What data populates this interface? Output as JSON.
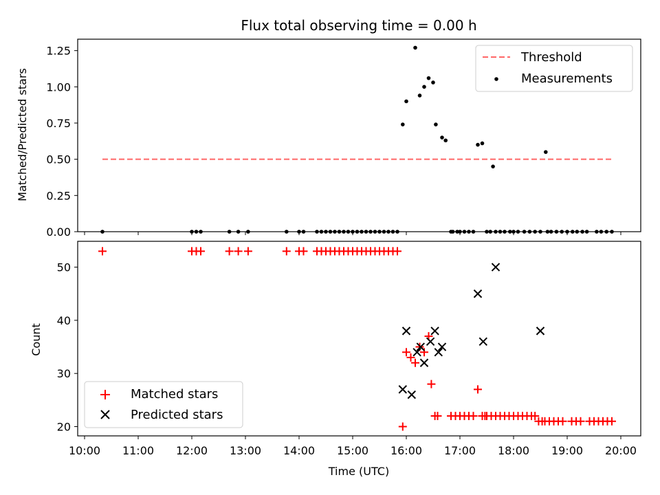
{
  "chart_data": [
    {
      "type": "scatter",
      "title": "Flux total observing time = 0.00 h",
      "xlabel": "",
      "ylabel": "Matched/Predicted stars",
      "xlim": [
        "10:00",
        "20:10"
      ],
      "ylim": [
        0,
        1.33
      ],
      "yticks": [
        0.0,
        0.25,
        0.5,
        0.75,
        1.0,
        1.25
      ],
      "ytick_labels": [
        "0.00",
        "0.25",
        "0.50",
        "0.75",
        "1.00",
        "1.25"
      ],
      "legend_position": "top-right",
      "colors": {
        "threshold": "#ff6666",
        "measurements": "#000000"
      },
      "series": [
        {
          "name": "Threshold",
          "style": "dashed-line",
          "x": [
            "10:20",
            "19:50"
          ],
          "y": [
            0.5,
            0.5
          ]
        },
        {
          "name": "Measurements",
          "style": "dot",
          "x": [
            "10:20",
            "12:00",
            "12:05",
            "12:10",
            "12:42",
            "12:52",
            "13:03",
            "13:46",
            "14:00",
            "14:05",
            "14:20",
            "14:25",
            "14:30",
            "14:35",
            "14:40",
            "14:45",
            "14:50",
            "14:55",
            "15:00",
            "15:05",
            "15:10",
            "15:15",
            "15:20",
            "15:25",
            "15:30",
            "15:35",
            "15:40",
            "15:45",
            "15:50",
            "15:56",
            "16:00",
            "16:10",
            "16:15",
            "16:20",
            "16:25",
            "16:30",
            "16:33",
            "16:40",
            "16:44",
            "16:50",
            "16:52",
            "16:57",
            "17:00",
            "17:05",
            "17:10",
            "17:15",
            "17:20",
            "17:25",
            "17:30",
            "17:34",
            "17:37",
            "17:40",
            "17:45",
            "17:50",
            "17:56",
            "18:00",
            "18:05",
            "18:12",
            "18:18",
            "18:24",
            "18:30",
            "18:36",
            "18:38",
            "18:42",
            "18:48",
            "18:54",
            "19:00",
            "19:06",
            "19:11",
            "19:17",
            "19:22",
            "19:33",
            "19:38",
            "19:44",
            "19:50"
          ],
          "y": [
            0.0,
            0.0,
            0.0,
            0.0,
            0.0,
            0.0,
            0.0,
            0.0,
            0.0,
            0.0,
            0.0,
            0.0,
            0.0,
            0.0,
            0.0,
            0.0,
            0.0,
            0.0,
            0.0,
            0.0,
            0.0,
            0.0,
            0.0,
            0.0,
            0.0,
            0.0,
            0.0,
            0.0,
            0.0,
            0.74,
            0.9,
            1.27,
            0.94,
            1.0,
            1.06,
            1.03,
            0.74,
            0.65,
            0.63,
            0.0,
            0.0,
            0.0,
            0.0,
            0.0,
            0.0,
            0.0,
            0.6,
            0.61,
            0.0,
            0.0,
            0.45,
            0.0,
            0.0,
            0.0,
            0.0,
            0.0,
            0.0,
            0.0,
            0.0,
            0.0,
            0.0,
            0.55,
            0.0,
            0.0,
            0.0,
            0.0,
            0.0,
            0.0,
            0.0,
            0.0,
            0.0,
            0.0,
            0.0,
            0.0,
            0.0
          ]
        }
      ]
    },
    {
      "type": "scatter",
      "title": "",
      "xlabel": "Time (UTC)",
      "ylabel": "Count",
      "xlim": [
        "10:00",
        "20:10"
      ],
      "ylim": [
        18.5,
        54.5
      ],
      "xticks": [
        "10:00",
        "11:00",
        "12:00",
        "13:00",
        "14:00",
        "15:00",
        "16:00",
        "17:00",
        "18:00",
        "19:00",
        "20:00"
      ],
      "yticks": [
        20,
        30,
        40,
        50
      ],
      "legend_position": "bottom-left",
      "colors": {
        "matched": "#ff0000",
        "predicted": "#000000"
      },
      "series": [
        {
          "name": "Matched stars",
          "marker": "plus",
          "x": [
            "10:20",
            "12:00",
            "12:05",
            "12:10",
            "12:42",
            "12:52",
            "13:03",
            "13:46",
            "14:00",
            "14:05",
            "14:20",
            "14:25",
            "14:30",
            "14:35",
            "14:40",
            "14:45",
            "14:50",
            "14:55",
            "15:00",
            "15:05",
            "15:10",
            "15:15",
            "15:20",
            "15:25",
            "15:30",
            "15:35",
            "15:40",
            "15:45",
            "15:50",
            "15:56",
            "16:00",
            "16:05",
            "16:10",
            "16:15",
            "16:20",
            "16:25",
            "16:28",
            "16:32",
            "16:35",
            "16:50",
            "16:55",
            "17:00",
            "17:05",
            "17:10",
            "17:15",
            "17:20",
            "17:25",
            "17:28",
            "17:30",
            "17:35",
            "17:40",
            "17:45",
            "17:50",
            "17:55",
            "18:00",
            "18:05",
            "18:10",
            "18:15",
            "18:20",
            "18:24",
            "18:28",
            "18:32",
            "18:35",
            "18:40",
            "18:45",
            "18:50",
            "18:55",
            "19:05",
            "19:10",
            "19:15",
            "19:25",
            "19:30",
            "19:35",
            "19:40",
            "19:45",
            "19:50"
          ],
          "y": [
            53,
            53,
            53,
            53,
            53,
            53,
            53,
            53,
            53,
            53,
            53,
            53,
            53,
            53,
            53,
            53,
            53,
            53,
            53,
            53,
            53,
            53,
            53,
            53,
            53,
            53,
            53,
            53,
            53,
            20,
            34,
            33,
            32,
            35,
            34,
            37,
            28,
            22,
            22,
            22,
            22,
            22,
            22,
            22,
            22,
            27,
            22,
            22,
            22,
            22,
            22,
            22,
            22,
            22,
            22,
            22,
            22,
            22,
            22,
            22,
            21,
            21,
            21,
            21,
            21,
            21,
            21,
            21,
            21,
            21,
            21,
            21,
            21,
            21,
            21,
            21
          ]
        },
        {
          "name": "Predicted stars",
          "marker": "x",
          "x": [
            "15:56",
            "16:00",
            "16:06",
            "16:12",
            "16:16",
            "16:20",
            "16:27",
            "16:32",
            "16:36",
            "16:40",
            "17:20",
            "17:26",
            "17:40",
            "18:30"
          ],
          "y": [
            27,
            38,
            26,
            34,
            35,
            32,
            36,
            38,
            34,
            35,
            45,
            36,
            50,
            38
          ]
        }
      ]
    }
  ]
}
